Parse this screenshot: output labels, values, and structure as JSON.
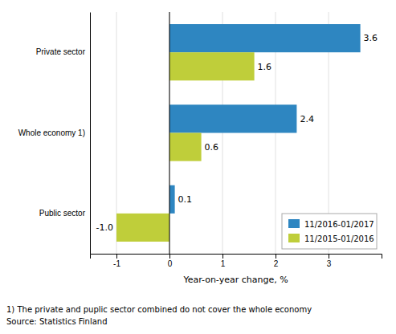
{
  "chart_data": {
    "type": "bar",
    "orientation": "horizontal",
    "categories": [
      "Public sector",
      "Whole economy 1)",
      "Private sector"
    ],
    "series": [
      {
        "name": "11/2016-01/2017",
        "color": "#2E86C1",
        "values": [
          0.1,
          2.4,
          3.6
        ]
      },
      {
        "name": "11/2015-01/2016",
        "color": "#BFCE3A",
        "values": [
          -1.0,
          0.6,
          1.6
        ],
        "value_labels": [
          "-1.0",
          "0.6",
          "1.6"
        ]
      }
    ],
    "xlabel": "Year-on-year change, %",
    "xlim": [
      -1.5,
      4.0
    ],
    "xticks": [
      -1,
      0,
      1,
      2,
      3
    ],
    "grid": true,
    "legend": "lower right",
    "data_labels": true,
    "annotations": [
      "1) The private and puplic sector combined do not cover the whole economy",
      "Source: Statistics Finland"
    ]
  }
}
